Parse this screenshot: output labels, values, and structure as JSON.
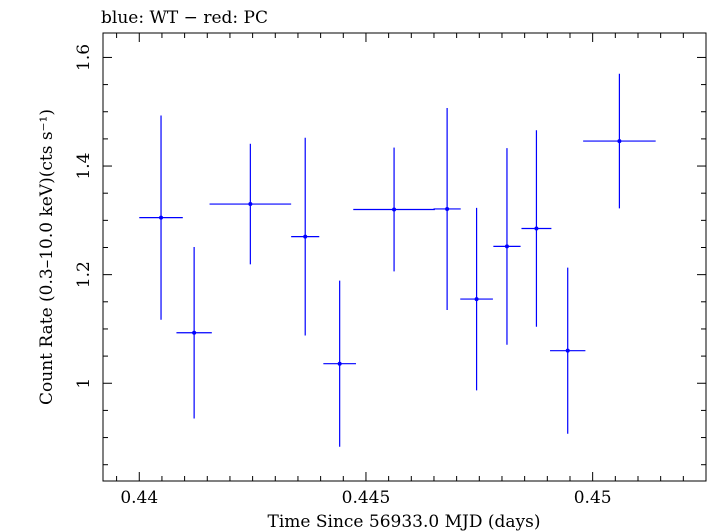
{
  "chart_data": {
    "type": "scatter",
    "title": "blue: WT − red: PC",
    "xlabel": "Time Since 56933.0 MJD (days)",
    "ylabel": "Count Rate (0.3–10.0 keV)(cts s⁻¹)",
    "xlim": [
      0.4392,
      0.4525
    ],
    "ylim": [
      0.82,
      1.645
    ],
    "x_ticks": [
      0.44,
      0.445,
      0.45
    ],
    "x_tick_labels": [
      "0.44",
      "0.445",
      "0.45"
    ],
    "y_ticks": [
      1.0,
      1.2,
      1.4,
      1.6
    ],
    "y_tick_labels": [
      "1",
      "1.2",
      "1.4",
      "1.6"
    ],
    "series": [
      {
        "color": "#0000ff",
        "points": [
          {
            "x": 0.44048,
            "xerr": 0.00048,
            "y": 1.305,
            "yerr_lo": 0.188,
            "yerr_hi": 0.188
          },
          {
            "x": 0.44121,
            "xerr": 0.00039,
            "y": 1.093,
            "yerr_lo": 0.158,
            "yerr_hi": 0.158
          },
          {
            "x": 0.44245,
            "xerr": 0.0009,
            "y": 1.33,
            "yerr_lo": 0.111,
            "yerr_hi": 0.111
          },
          {
            "x": 0.44366,
            "xerr": 0.00031,
            "y": 1.27,
            "yerr_lo": 0.182,
            "yerr_hi": 0.182
          },
          {
            "x": 0.44442,
            "xerr": 0.00036,
            "y": 1.036,
            "yerr_lo": 0.153,
            "yerr_hi": 0.153
          },
          {
            "x": 0.44562,
            "xerr": 0.0009,
            "y": 1.32,
            "yerr_lo": 0.114,
            "yerr_hi": 0.114
          },
          {
            "x": 0.44679,
            "xerr": 0.0003,
            "y": 1.321,
            "yerr_lo": 0.186,
            "yerr_hi": 0.186
          },
          {
            "x": 0.44744,
            "xerr": 0.00036,
            "y": 1.155,
            "yerr_lo": 0.168,
            "yerr_hi": 0.168
          },
          {
            "x": 0.44811,
            "xerr": 0.0003,
            "y": 1.252,
            "yerr_lo": 0.181,
            "yerr_hi": 0.181
          },
          {
            "x": 0.44876,
            "xerr": 0.00033,
            "y": 1.285,
            "yerr_lo": 0.181,
            "yerr_hi": 0.181
          },
          {
            "x": 0.44945,
            "xerr": 0.00039,
            "y": 1.06,
            "yerr_lo": 0.153,
            "yerr_hi": 0.153
          },
          {
            "x": 0.45059,
            "xerr": 0.0008,
            "y": 1.446,
            "yerr_lo": 0.124,
            "yerr_hi": 0.124
          }
        ]
      }
    ]
  }
}
